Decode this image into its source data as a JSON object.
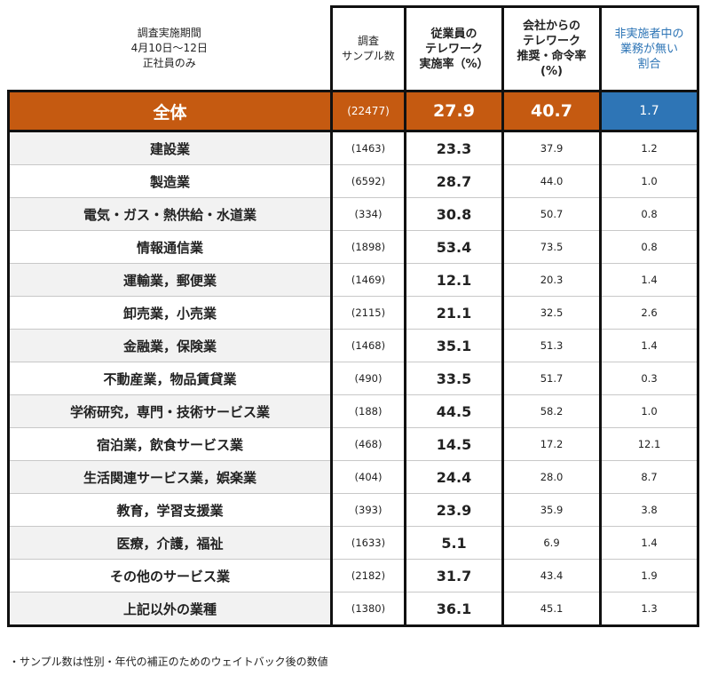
{
  "header": {
    "period": [
      "調査実施期間",
      "4月10日～12日",
      "正社員のみ"
    ],
    "columns": [
      [
        "調査",
        "サンプル数"
      ],
      [
        "従業員の",
        "テレワーク",
        "実施率（%）"
      ],
      [
        "会社からの",
        "テレワーク",
        "推奨・命令率",
        "(%)"
      ],
      [
        "非実施者中の",
        "業務が無い",
        "割合"
      ]
    ]
  },
  "total": [
    "全体",
    "(22477)",
    "27.9",
    "40.7",
    "1.7"
  ],
  "table": {
    "rows": [
      [
        "建設業",
        "(1463)",
        "23.3",
        "37.9",
        "1.2"
      ],
      [
        "製造業",
        "(6592)",
        "28.7",
        "44.0",
        "1.0"
      ],
      [
        "電気・ガス・熱供給・水道業",
        "(334)",
        "30.8",
        "50.7",
        "0.8"
      ],
      [
        "情報通信業",
        "(1898)",
        "53.4",
        "73.5",
        "0.8"
      ],
      [
        "運輸業，郵便業",
        "(1469)",
        "12.1",
        "20.3",
        "1.4"
      ],
      [
        "卸売業，小売業",
        "(2115)",
        "21.1",
        "32.5",
        "2.6"
      ],
      [
        "金融業，保険業",
        "(1468)",
        "35.1",
        "51.3",
        "1.4"
      ],
      [
        "不動産業，物品賃貸業",
        "(490)",
        "33.5",
        "51.7",
        "0.3"
      ],
      [
        "学術研究，専門・技術サービス業",
        "(188)",
        "44.5",
        "58.2",
        "1.0"
      ],
      [
        "宿泊業，飲食サービス業",
        "(468)",
        "14.5",
        "17.2",
        "12.1"
      ],
      [
        "生活関連サービス業，娯楽業",
        "(404)",
        "24.4",
        "28.0",
        "8.7"
      ],
      [
        "教育，学習支援業",
        "(393)",
        "23.9",
        "35.9",
        "3.8"
      ],
      [
        "医療，介護，福祉",
        "(1633)",
        "5.1",
        "6.9",
        "1.4"
      ],
      [
        "その他のサービス業",
        "(2182)",
        "31.7",
        "43.4",
        "1.9"
      ],
      [
        "上記以外の業種",
        "(1380)",
        "36.1",
        "45.1",
        "1.3"
      ]
    ]
  },
  "footnote": "・サンプル数は性別・年代の補正のためのウェイトバック後の数値"
}
